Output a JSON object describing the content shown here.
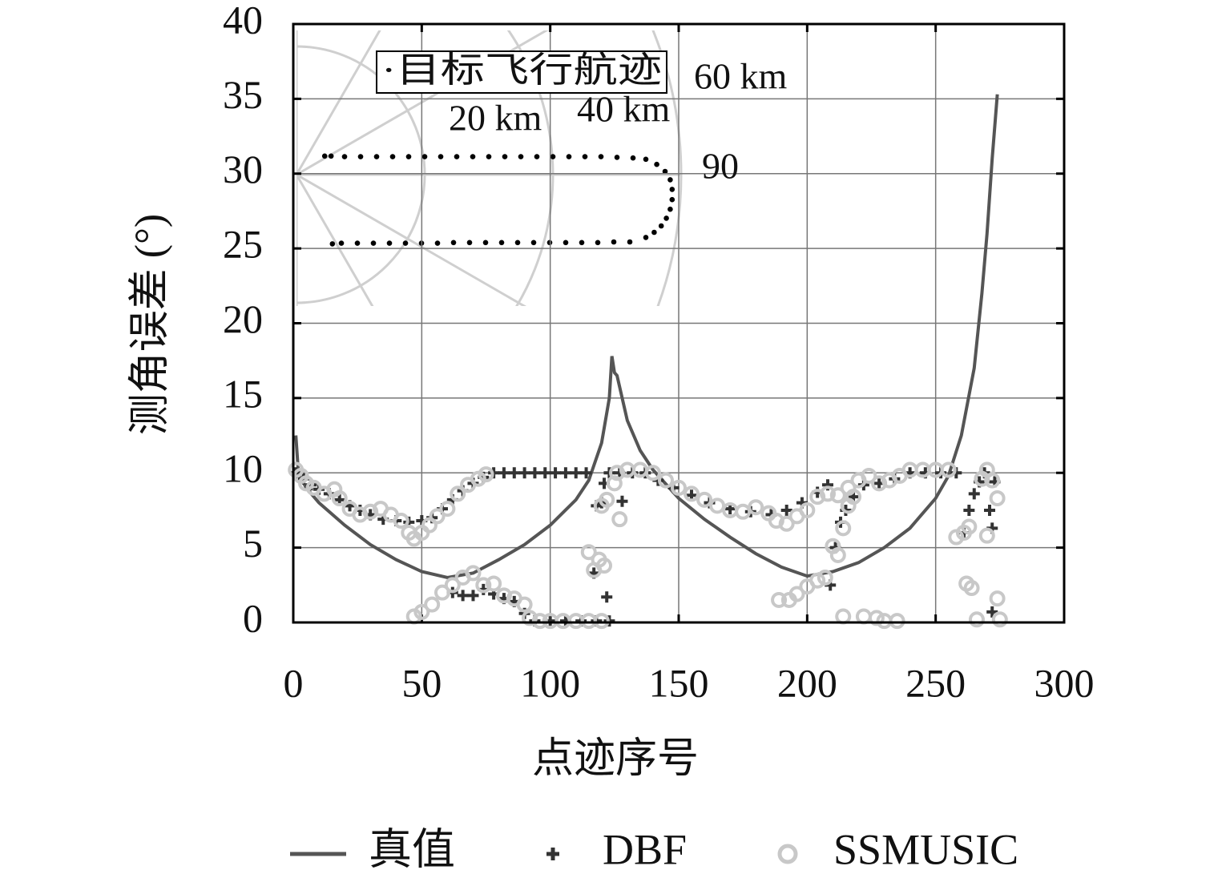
{
  "chart_data": [
    {
      "type": "scatter",
      "xlabel": "点迹序号",
      "ylabel": "测角误差 (°)",
      "xlim": [
        0,
        300
      ],
      "ylim": [
        0,
        40
      ],
      "xticks": [
        0,
        50,
        100,
        150,
        200,
        250,
        300
      ],
      "yticks": [
        0,
        5,
        10,
        15,
        20,
        25,
        30,
        35,
        40
      ],
      "grid": true,
      "legend": "bottom",
      "series": [
        {
          "name": "真值",
          "kind": "line",
          "color": "#555555",
          "x": [
            1,
            2,
            5,
            10,
            20,
            30,
            40,
            50,
            60,
            70,
            80,
            90,
            100,
            110,
            115,
            120,
            123,
            124,
            125,
            126,
            130,
            135,
            140,
            150,
            160,
            170,
            180,
            190,
            200,
            210,
            220,
            230,
            240,
            250,
            255,
            260,
            265,
            268,
            270,
            272,
            274
          ],
          "values": [
            12.5,
            10,
            9,
            8,
            6.5,
            5.2,
            4.2,
            3.4,
            3.0,
            3.3,
            4.2,
            5.2,
            6.5,
            8.2,
            9.5,
            12,
            15,
            17.8,
            16.7,
            16.5,
            13.5,
            11.5,
            10.2,
            8.3,
            6.9,
            5.7,
            4.6,
            3.7,
            3.1,
            3.4,
            4.0,
            5.0,
            6.3,
            8.3,
            9.8,
            12.5,
            17,
            22,
            26,
            31,
            35.3
          ]
        },
        {
          "name": "DBF",
          "kind": "plus",
          "color": "#333333",
          "x": [
            1,
            4,
            7,
            10,
            14,
            18,
            22,
            26,
            30,
            35,
            40,
            45,
            50,
            54,
            58,
            62,
            66,
            70,
            74,
            78,
            82,
            86,
            90,
            94,
            98,
            102,
            106,
            110,
            114,
            62,
            66,
            70,
            74,
            78,
            82,
            86,
            90,
            94,
            100,
            106,
            112,
            118,
            117,
            118,
            120,
            121,
            123,
            128,
            122,
            123,
            127,
            132,
            137,
            142,
            148,
            155,
            162,
            170,
            178,
            186,
            192,
            198,
            204,
            208,
            209,
            211,
            213,
            215,
            218,
            222,
            228,
            234,
            240,
            246,
            252,
            258,
            261,
            263,
            265,
            267,
            269,
            271,
            272,
            273,
            272
          ],
          "values": [
            10,
            9.6,
            9.2,
            8.9,
            8.6,
            8.2,
            7.8,
            7.5,
            7.2,
            6.9,
            6.8,
            6.7,
            6.8,
            7.0,
            7.6,
            8.2,
            8.8,
            9.3,
            9.7,
            10,
            10,
            10,
            10,
            10,
            10,
            10,
            10,
            10,
            10,
            2.0,
            1.8,
            1.8,
            2.2,
            1.9,
            1.6,
            1.4,
            0.6,
            0.1,
            0.1,
            0.1,
            0.1,
            0.1,
            3.3,
            7.8,
            8.0,
            9.3,
            10,
            8.1,
            1.7,
            0.1,
            10,
            10,
            10,
            9.5,
            9.0,
            8.5,
            8.0,
            7.6,
            7.4,
            7.2,
            7.5,
            8.0,
            8.7,
            9.2,
            2.5,
            5.0,
            6.7,
            7.5,
            8.4,
            9.2,
            9.3,
            9.6,
            10,
            10,
            10,
            10,
            6.0,
            7.5,
            8.6,
            9.4,
            10,
            7.5,
            6.3,
            9.4,
            0.7
          ]
        },
        {
          "name": "SSMUSIC",
          "kind": "circle",
          "color": "#c8c8c8",
          "x": [
            1,
            3,
            5,
            8,
            12,
            16,
            18,
            22,
            26,
            30,
            34,
            38,
            42,
            45,
            47,
            50,
            53,
            56,
            60,
            64,
            68,
            72,
            75,
            47,
            50,
            54,
            58,
            62,
            66,
            70,
            74,
            78,
            82,
            86,
            90,
            92,
            96,
            100,
            105,
            110,
            115,
            120,
            115,
            117,
            119,
            121,
            120,
            122,
            125,
            127,
            126,
            130,
            135,
            140,
            145,
            150,
            155,
            160,
            165,
            170,
            175,
            180,
            185,
            188,
            192,
            196,
            200,
            204,
            208,
            212,
            216,
            220,
            224,
            228,
            232,
            236,
            240,
            245,
            250,
            255,
            210,
            212,
            214,
            216,
            218,
            189,
            193,
            196,
            200,
            204,
            207,
            214,
            222,
            227,
            230,
            235,
            258,
            261,
            263,
            262,
            264,
            266,
            268,
            270,
            272,
            274,
            274,
            275,
            270
          ],
          "values": [
            10.2,
            9.8,
            9.3,
            9.0,
            8.6,
            8.9,
            8.3,
            7.6,
            7.2,
            7.4,
            7.6,
            7.2,
            6.8,
            6.0,
            5.6,
            6.0,
            6.5,
            7.1,
            7.6,
            8.6,
            9.2,
            9.6,
            9.9,
            0.4,
            0.7,
            1.2,
            2.0,
            2.5,
            3.0,
            3.3,
            2.5,
            2.6,
            1.8,
            1.6,
            1.2,
            0.3,
            0.1,
            0.1,
            0.1,
            0.1,
            0.1,
            0.1,
            4.7,
            3.5,
            4.2,
            3.8,
            7.8,
            8.2,
            9.3,
            6.9,
            10,
            10.2,
            10.2,
            10,
            9.5,
            9.0,
            8.6,
            8.2,
            7.8,
            7.5,
            7.4,
            7.7,
            7.3,
            6.8,
            6.6,
            7.1,
            7.5,
            8.4,
            8.6,
            8.5,
            9.0,
            9.5,
            9.8,
            9.3,
            9.5,
            9.8,
            10.2,
            10.2,
            10.2,
            10.2,
            5.1,
            4.5,
            6.3,
            7.8,
            8.4,
            1.5,
            1.5,
            1.9,
            2.4,
            2.8,
            3.0,
            0.4,
            0.4,
            0.3,
            0.1,
            0.1,
            5.7,
            6.0,
            6.4,
            2.6,
            2.3,
            0.2,
            9.6,
            10.2,
            9.5,
            8.3,
            1.6,
            0.2,
            5.8
          ]
        }
      ]
    },
    {
      "type": "polar",
      "title": "·目标飞行航迹",
      "rticks": [
        {
          "value": 20,
          "label": "20 km"
        },
        {
          "value": 40,
          "label": "40 km"
        },
        {
          "value": 60,
          "label": "60 km"
        }
      ],
      "thetaticks": [
        90
      ],
      "x": [
        4.4,
        5.4,
        7.5,
        10,
        12.5,
        15,
        17.5,
        20,
        22.5,
        25,
        27.5,
        30,
        32.5,
        35,
        37.5,
        40,
        42.5,
        45,
        47.5,
        50,
        52.5,
        54.5,
        56.2,
        57.5,
        58.3,
        58.6,
        58.6,
        58.3,
        57.7,
        56.9,
        55.8,
        54.5,
        52,
        49.5,
        47,
        44.5,
        42,
        39.5,
        37,
        34.5,
        32,
        29.5,
        27,
        24.5,
        22,
        19.5,
        17,
        14.5,
        12,
        9.5,
        7,
        5.6
      ],
      "y": [
        2.9,
        2.9,
        2.8,
        2.8,
        2.8,
        2.8,
        2.8,
        2.8,
        2.8,
        2.8,
        2.8,
        2.8,
        2.8,
        2.8,
        2.8,
        2.8,
        2.8,
        2.8,
        2.8,
        2.7,
        2.6,
        2.4,
        1.6,
        0.5,
        -0.8,
        -2.3,
        -3.9,
        -5.4,
        -6.8,
        -8.0,
        -9.0,
        -9.8,
        -10.5,
        -10.5,
        -10.6,
        -10.6,
        -10.6,
        -10.6,
        -10.6,
        -10.6,
        -10.6,
        -10.6,
        -10.6,
        -10.6,
        -10.7,
        -10.7,
        -10.7,
        -10.7,
        -10.7,
        -10.7,
        -10.7,
        -10.8
      ]
    }
  ]
}
